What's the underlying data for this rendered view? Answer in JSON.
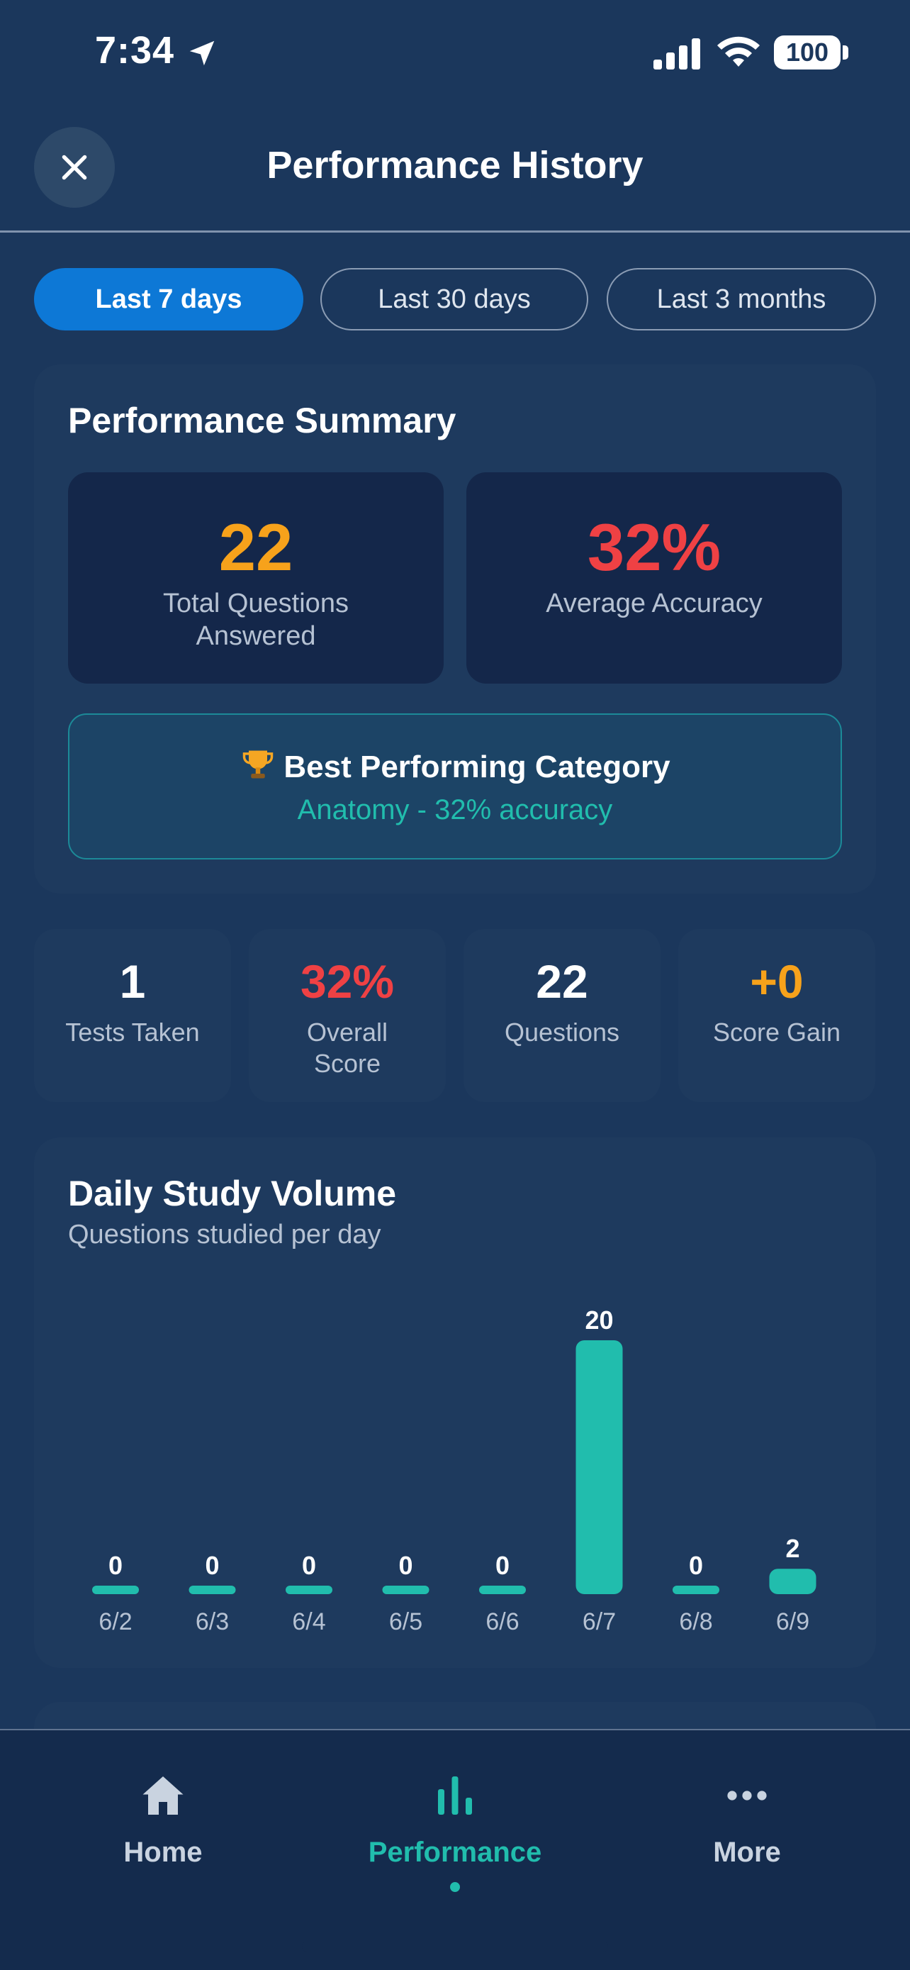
{
  "status_bar": {
    "time": "7:34",
    "battery": "100"
  },
  "header": {
    "title": "Performance History"
  },
  "period_tabs": [
    {
      "label": "Last 7 days",
      "active": true
    },
    {
      "label": "Last 30 days",
      "active": false
    },
    {
      "label": "Last 3 months",
      "active": false
    }
  ],
  "summary": {
    "title": "Performance Summary",
    "total_questions": {
      "value": "22",
      "label_line1": "Total Questions",
      "label_line2": "Answered",
      "color": "#f7a21b"
    },
    "average_accuracy": {
      "value": "32%",
      "label": "Average Accuracy",
      "color": "#ef4144"
    },
    "best_category": {
      "title": "Best Performing Category",
      "detail": "Anatomy - 32% accuracy",
      "icon": "trophy-icon"
    }
  },
  "quick_stats": [
    {
      "value": "1",
      "label_line1": "Tests Taken",
      "label_line2": "",
      "color": "#ffffff"
    },
    {
      "value": "32%",
      "label_line1": "Overall",
      "label_line2": "Score",
      "color": "#ef4144"
    },
    {
      "value": "22",
      "label_line1": "Questions",
      "label_line2": "",
      "color": "#ffffff"
    },
    {
      "value": "+0",
      "label_line1": "Score Gain",
      "label_line2": "",
      "color": "#f7a21b"
    }
  ],
  "daily_volume": {
    "title": "Daily Study Volume",
    "subtitle": "Questions studied per day"
  },
  "chart_data": {
    "type": "bar",
    "title": "Daily Study Volume",
    "subtitle": "Questions studied per day",
    "categories": [
      "6/2",
      "6/3",
      "6/4",
      "6/5",
      "6/6",
      "6/7",
      "6/8",
      "6/9"
    ],
    "values": [
      0,
      0,
      0,
      0,
      0,
      20,
      0,
      2
    ],
    "xlabel": "",
    "ylabel": "",
    "ylim": [
      0,
      20
    ],
    "grid": false,
    "bar_color": "#21bdad"
  },
  "bottom_nav": [
    {
      "label": "Home",
      "icon": "home-icon",
      "active": false
    },
    {
      "label": "Performance",
      "icon": "bar-chart-icon",
      "active": true
    },
    {
      "label": "More",
      "icon": "more-icon",
      "active": false
    }
  ],
  "colors": {
    "accent": "#21bdad",
    "primary": "#0d78d6",
    "warning": "#f7a21b",
    "danger": "#ef4144"
  }
}
